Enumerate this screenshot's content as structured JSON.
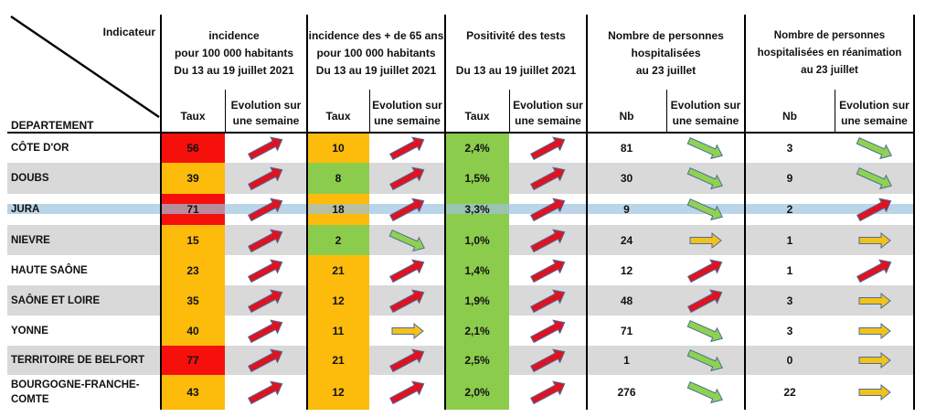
{
  "header": {
    "indicateur": "Indicateur",
    "departement": "DEPARTEMENT",
    "groups": [
      {
        "lines": [
          "incidence",
          "pour 100 000 habitants",
          "Du 13 au 19 juillet  2021"
        ],
        "sub_value": "Taux",
        "sub_evol": "Evolution sur une semaine"
      },
      {
        "lines": [
          "incidence des + de 65 ans",
          "pour 100 000 habitants",
          "Du 13 au 19 juillet 2021"
        ],
        "sub_value": "Taux",
        "sub_evol": "Evolution sur une semaine"
      },
      {
        "lines": [
          "Positivité des tests",
          "",
          "Du 13 au 19 juillet 2021"
        ],
        "sub_value": "Taux",
        "sub_evol": "Evolution sur une semaine"
      },
      {
        "lines": [
          "Nombre de personnes",
          "hospitalisées",
          "au 23 juillet"
        ],
        "sub_value": "Nb",
        "sub_evol": "Evolution sur une semaine"
      },
      {
        "lines": [
          "Nombre de personnes",
          "hospitalisées en réanimation",
          "au 23 juillet"
        ],
        "sub_value": "Nb",
        "sub_evol": "Evolution sur une semaine"
      }
    ]
  },
  "colors": {
    "red": "#f5100c",
    "orange": "#fdbb0c",
    "green": "#8ccc4c",
    "stripe": "#d9d9d9",
    "highlight": "#9cc2de",
    "arrow_up": "#e0121f",
    "arrow_down": "#8fd24f",
    "arrow_flat": "#f2c21a"
  },
  "rows": [
    {
      "name": "CÔTE D'OR",
      "cells": [
        {
          "value": "56",
          "color": "red",
          "trend": "up"
        },
        {
          "value": "10",
          "color": "orange",
          "trend": "up"
        },
        {
          "value": "2,4%",
          "color": "green",
          "trend": "up"
        },
        {
          "value": "81",
          "color": "none",
          "trend": "down"
        },
        {
          "value": "3",
          "color": "none",
          "trend": "down"
        }
      ]
    },
    {
      "name": "DOUBS",
      "cells": [
        {
          "value": "39",
          "color": "orange",
          "trend": "up"
        },
        {
          "value": "8",
          "color": "green",
          "trend": "up"
        },
        {
          "value": "1,5%",
          "color": "green",
          "trend": "up"
        },
        {
          "value": "30",
          "color": "none",
          "trend": "down"
        },
        {
          "value": "9",
          "color": "none",
          "trend": "down"
        }
      ]
    },
    {
      "name": "JURA",
      "cells": [
        {
          "value": "71",
          "color": "red",
          "trend": "up"
        },
        {
          "value": "18",
          "color": "orange",
          "trend": "up"
        },
        {
          "value": "3,3%",
          "color": "green",
          "trend": "up"
        },
        {
          "value": "9",
          "color": "none",
          "trend": "down"
        },
        {
          "value": "2",
          "color": "none",
          "trend": "up"
        }
      ]
    },
    {
      "name": "NIEVRE",
      "cells": [
        {
          "value": "15",
          "color": "orange",
          "trend": "up"
        },
        {
          "value": "2",
          "color": "green",
          "trend": "down"
        },
        {
          "value": "1,0%",
          "color": "green",
          "trend": "up"
        },
        {
          "value": "24",
          "color": "none",
          "trend": "flat"
        },
        {
          "value": "1",
          "color": "none",
          "trend": "flat"
        }
      ]
    },
    {
      "name": "HAUTE SAÔNE",
      "cells": [
        {
          "value": "23",
          "color": "orange",
          "trend": "up"
        },
        {
          "value": "21",
          "color": "orange",
          "trend": "up"
        },
        {
          "value": "1,4%",
          "color": "green",
          "trend": "up"
        },
        {
          "value": "12",
          "color": "none",
          "trend": "up"
        },
        {
          "value": "1",
          "color": "none",
          "trend": "up"
        }
      ]
    },
    {
      "name": "SAÔNE ET LOIRE",
      "cells": [
        {
          "value": "35",
          "color": "orange",
          "trend": "up"
        },
        {
          "value": "12",
          "color": "orange",
          "trend": "up"
        },
        {
          "value": "1,9%",
          "color": "green",
          "trend": "up"
        },
        {
          "value": "48",
          "color": "none",
          "trend": "up"
        },
        {
          "value": "3",
          "color": "none",
          "trend": "flat"
        }
      ]
    },
    {
      "name": "YONNE",
      "cells": [
        {
          "value": "40",
          "color": "orange",
          "trend": "up"
        },
        {
          "value": "11",
          "color": "orange",
          "trend": "flat"
        },
        {
          "value": "2,1%",
          "color": "green",
          "trend": "up"
        },
        {
          "value": "71",
          "color": "none",
          "trend": "down"
        },
        {
          "value": "3",
          "color": "none",
          "trend": "flat"
        }
      ]
    },
    {
      "name": "TERRITOIRE DE BELFORT",
      "cells": [
        {
          "value": "77",
          "color": "red",
          "trend": "up"
        },
        {
          "value": "21",
          "color": "orange",
          "trend": "up"
        },
        {
          "value": "2,5%",
          "color": "green",
          "trend": "up"
        },
        {
          "value": "1",
          "color": "none",
          "trend": "down"
        },
        {
          "value": "0",
          "color": "none",
          "trend": "flat"
        }
      ]
    },
    {
      "name": "BOURGOGNE-FRANCHE-\nCOMTE",
      "cells": [
        {
          "value": "43",
          "color": "orange",
          "trend": "up"
        },
        {
          "value": "12",
          "color": "orange",
          "trend": "up"
        },
        {
          "value": "2,0%",
          "color": "green",
          "trend": "up"
        },
        {
          "value": "276",
          "color": "none",
          "trend": "down"
        },
        {
          "value": "22",
          "color": "none",
          "trend": "flat"
        }
      ]
    }
  ]
}
